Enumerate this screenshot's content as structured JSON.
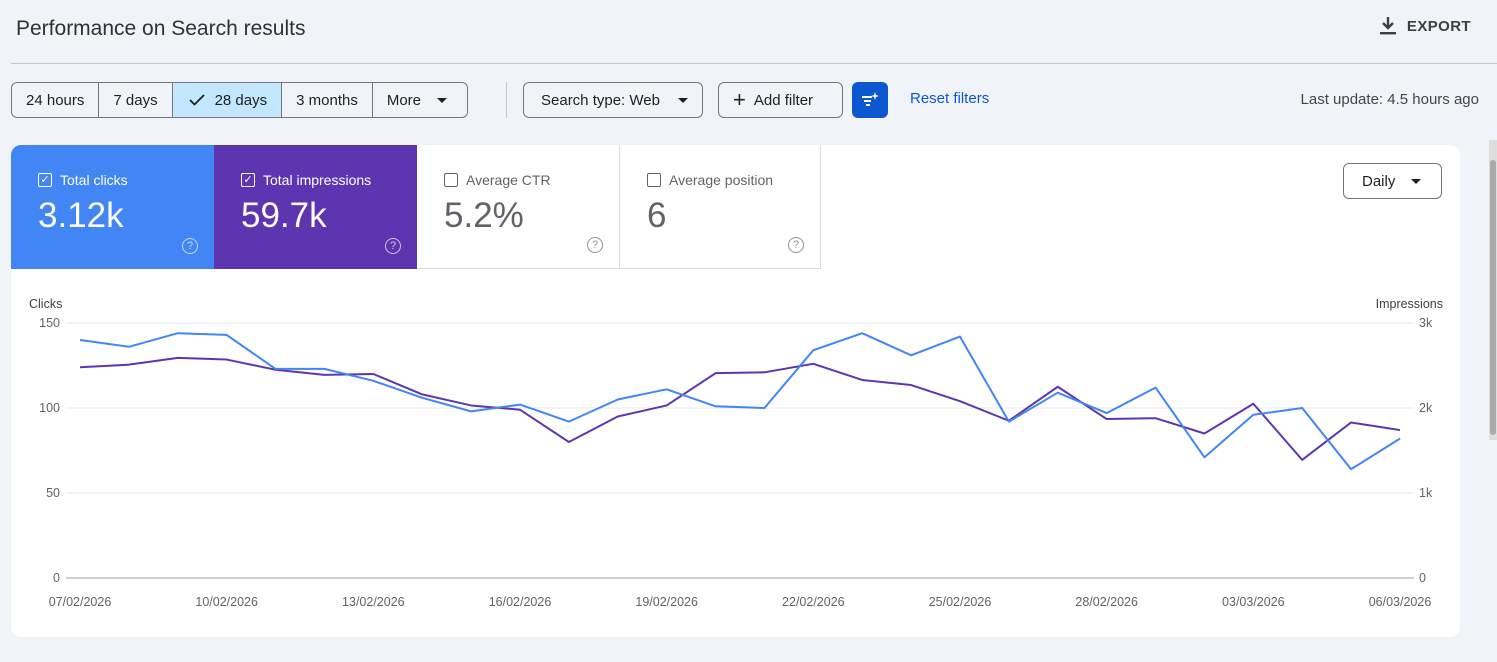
{
  "header": {
    "title": "Performance on Search results",
    "export_label": "EXPORT"
  },
  "filters": {
    "ranges": [
      {
        "label": "24 hours",
        "selected": false
      },
      {
        "label": "7 days",
        "selected": false
      },
      {
        "label": "28 days",
        "selected": true
      },
      {
        "label": "3 months",
        "selected": false
      },
      {
        "label": "More",
        "selected": false
      }
    ],
    "search_type": "Search type: Web",
    "add_filter": "Add filter",
    "reset": "Reset filters",
    "last_update": "Last update: 4.5 hours ago"
  },
  "metrics": [
    {
      "label": "Total clicks",
      "value": "3.12k",
      "checked": true,
      "color": "#4285f4"
    },
    {
      "label": "Total impressions",
      "value": "59.7k",
      "checked": true,
      "color": "#5e35b1"
    },
    {
      "label": "Average CTR",
      "value": "5.2%",
      "checked": false
    },
    {
      "label": "Average position",
      "value": "6",
      "checked": false
    }
  ],
  "granularity": "Daily",
  "chart_data": {
    "type": "line",
    "x": [
      "07/02/2026",
      "08/02/2026",
      "09/02/2026",
      "10/02/2026",
      "11/02/2026",
      "12/02/2026",
      "13/02/2026",
      "14/02/2026",
      "15/02/2026",
      "16/02/2026",
      "17/02/2026",
      "18/02/2026",
      "19/02/2026",
      "20/02/2026",
      "21/02/2026",
      "22/02/2026",
      "23/02/2026",
      "24/02/2026",
      "25/02/2026",
      "26/02/2026",
      "27/02/2026",
      "28/02/2026",
      "01/03/2026",
      "02/03/2026",
      "03/03/2026",
      "04/03/2026",
      "05/03/2026",
      "06/03/2026"
    ],
    "x_tick_labels": [
      "07/02/2026",
      "10/02/2026",
      "13/02/2026",
      "16/02/2026",
      "19/02/2026",
      "22/02/2026",
      "25/02/2026",
      "28/02/2026",
      "03/03/2026",
      "06/03/2026"
    ],
    "ylabel_left": "Clicks",
    "ylabel_right": "Impressions",
    "yticks_left": [
      "0",
      "50",
      "100",
      "150"
    ],
    "ylim_left": [
      0,
      150
    ],
    "yticks_right": [
      "0",
      "1k",
      "2k",
      "3k"
    ],
    "ylim_right": [
      0,
      3000
    ],
    "grid": true,
    "legend": "none",
    "series": [
      {
        "name": "Total clicks",
        "axis": "left",
        "color": "#4285f4",
        "values": [
          140,
          136,
          144,
          143,
          123,
          123,
          116,
          106,
          98,
          102,
          92,
          105,
          111,
          101,
          100,
          134,
          144,
          131,
          142,
          92,
          109,
          97,
          112,
          71,
          96,
          100,
          64,
          82
        ]
      },
      {
        "name": "Total impressions",
        "axis": "right",
        "color": "#5e35b1",
        "values": [
          2480,
          2510,
          2590,
          2570,
          2450,
          2390,
          2400,
          2160,
          2030,
          1980,
          1600,
          1900,
          2030,
          2410,
          2420,
          2520,
          2330,
          2270,
          2080,
          1850,
          2250,
          1870,
          1880,
          1700,
          2050,
          1390,
          1830,
          1740
        ]
      }
    ]
  }
}
